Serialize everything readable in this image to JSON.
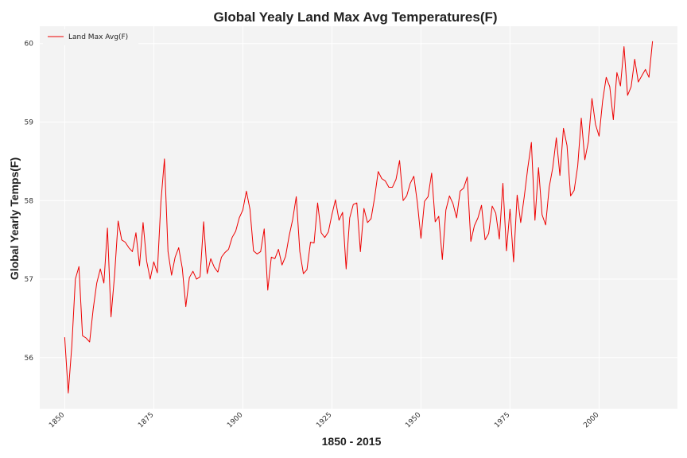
{
  "chart_data": {
    "type": "line",
    "title": "Global Yealy Land Max Avg Temperatures(F)",
    "xlabel": "1850 - 2015",
    "ylabel": "Global Yearly Temps(F)",
    "xlim": [
      1843,
      2022
    ],
    "ylim": [
      55.35,
      60.22
    ],
    "xticks": [
      1850,
      1875,
      1900,
      1925,
      1950,
      1975,
      2000
    ],
    "yticks": [
      56,
      57,
      58,
      59,
      60
    ],
    "grid": true,
    "legend_position": "top-left",
    "colors": {
      "line": "#ee0000",
      "plot_bg": "#f3f3f3",
      "grid": "#ffffff"
    },
    "series": [
      {
        "name": "Land Max Avg(F)",
        "x": [
          1850,
          1851,
          1852,
          1853,
          1854,
          1855,
          1856,
          1857,
          1858,
          1859,
          1860,
          1861,
          1862,
          1863,
          1864,
          1865,
          1866,
          1867,
          1868,
          1869,
          1870,
          1871,
          1872,
          1873,
          1874,
          1875,
          1876,
          1877,
          1878,
          1879,
          1880,
          1881,
          1882,
          1883,
          1884,
          1885,
          1886,
          1887,
          1888,
          1889,
          1890,
          1891,
          1892,
          1893,
          1894,
          1895,
          1896,
          1897,
          1898,
          1899,
          1900,
          1901,
          1902,
          1903,
          1904,
          1905,
          1906,
          1907,
          1908,
          1909,
          1910,
          1911,
          1912,
          1913,
          1914,
          1915,
          1916,
          1917,
          1918,
          1919,
          1920,
          1921,
          1922,
          1923,
          1924,
          1925,
          1926,
          1927,
          1928,
          1929,
          1930,
          1931,
          1932,
          1933,
          1934,
          1935,
          1936,
          1937,
          1938,
          1939,
          1940,
          1941,
          1942,
          1943,
          1944,
          1945,
          1946,
          1947,
          1948,
          1949,
          1950,
          1951,
          1952,
          1953,
          1954,
          1955,
          1956,
          1957,
          1958,
          1959,
          1960,
          1961,
          1962,
          1963,
          1964,
          1965,
          1966,
          1967,
          1968,
          1969,
          1970,
          1971,
          1972,
          1973,
          1974,
          1975,
          1976,
          1977,
          1978,
          1979,
          1980,
          1981,
          1982,
          1983,
          1984,
          1985,
          1986,
          1987,
          1988,
          1989,
          1990,
          1991,
          1992,
          1993,
          1994,
          1995,
          1996,
          1997,
          1998,
          1999,
          2000,
          2001,
          2002,
          2003,
          2004,
          2005,
          2006,
          2007,
          2008,
          2009,
          2010,
          2011,
          2012,
          2013,
          2014,
          2015
        ],
        "values": [
          56.26,
          55.55,
          56.15,
          57.0,
          57.16,
          56.28,
          56.25,
          56.2,
          56.62,
          56.95,
          57.13,
          56.95,
          57.65,
          56.52,
          57.05,
          57.74,
          57.5,
          57.47,
          57.4,
          57.35,
          57.59,
          57.17,
          57.72,
          57.23,
          57.0,
          57.22,
          57.08,
          57.98,
          58.53,
          57.35,
          57.05,
          57.28,
          57.4,
          57.14,
          56.65,
          57.02,
          57.1,
          57.0,
          57.03,
          57.73,
          57.07,
          57.26,
          57.15,
          57.09,
          57.28,
          57.34,
          57.38,
          57.53,
          57.61,
          57.78,
          57.88,
          58.12,
          57.89,
          57.36,
          57.32,
          57.35,
          57.64,
          56.86,
          57.28,
          57.26,
          57.38,
          57.18,
          57.29,
          57.55,
          57.76,
          58.05,
          57.35,
          57.07,
          57.12,
          57.47,
          57.46,
          57.97,
          57.59,
          57.53,
          57.6,
          57.82,
          58.01,
          57.75,
          57.85,
          57.13,
          57.78,
          57.95,
          57.97,
          57.35,
          57.9,
          57.72,
          57.77,
          58.04,
          58.37,
          58.28,
          58.25,
          58.17,
          58.17,
          58.27,
          58.51,
          58.0,
          58.06,
          58.22,
          58.31,
          57.97,
          57.52,
          57.99,
          58.05,
          58.35,
          57.73,
          57.8,
          57.25,
          57.88,
          58.06,
          57.96,
          57.78,
          58.12,
          58.16,
          58.3,
          57.48,
          57.68,
          57.78,
          57.94,
          57.5,
          57.58,
          57.93,
          57.84,
          57.51,
          58.22,
          57.36,
          57.89,
          57.22,
          58.07,
          57.72,
          58.05,
          58.42,
          58.74,
          57.75,
          58.42,
          57.82,
          57.69,
          58.17,
          58.42,
          58.8,
          58.32,
          58.92,
          58.7,
          58.06,
          58.13,
          58.44,
          59.05,
          58.52,
          58.75,
          59.3,
          58.97,
          58.82,
          59.27,
          59.57,
          59.45,
          59.03,
          59.63,
          59.46,
          59.96,
          59.34,
          59.45,
          59.8,
          59.51,
          59.59,
          59.67,
          59.57,
          60.03
        ]
      }
    ]
  }
}
